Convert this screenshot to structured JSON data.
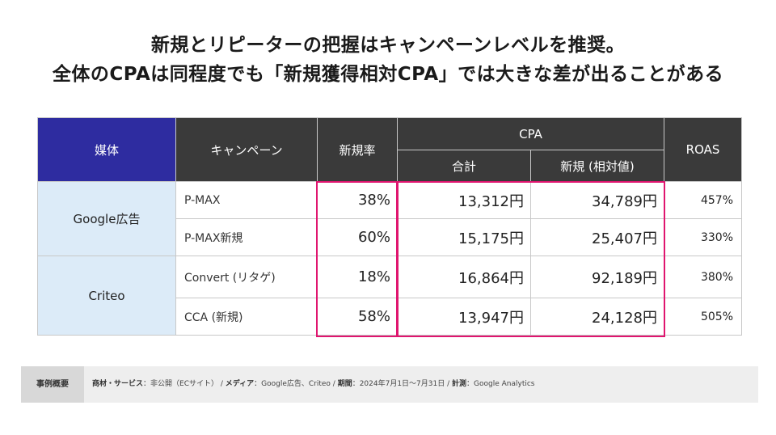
{
  "title": {
    "line1": "新規とリピーターの把握はキャンペーンレベルを推奨。",
    "line2": "全体のCPAは同程度でも「新規獲得相対CPA」では大きな差が出ることがある"
  },
  "table": {
    "headers": {
      "media": "媒体",
      "campaign": "キャンペーン",
      "new_rate": "新規率",
      "cpa": "CPA",
      "cpa_total": "合計",
      "cpa_new": "新規 (相対値)",
      "roas": "ROAS"
    },
    "groups": [
      {
        "media": "Google広告",
        "rows": [
          {
            "campaign": "P-MAX",
            "new_rate": "38%",
            "cpa_total": "13,312円",
            "cpa_new": "34,789円",
            "roas": "457%"
          },
          {
            "campaign": "P-MAX新規",
            "new_rate": "60%",
            "cpa_total": "15,175円",
            "cpa_new": "25,407円",
            "roas": "330%"
          }
        ]
      },
      {
        "media": "Criteo",
        "rows": [
          {
            "campaign": "Convert (リタゲ)",
            "new_rate": "18%",
            "cpa_total": "16,864円",
            "cpa_new": "92,189円",
            "roas": "380%"
          },
          {
            "campaign": "CCA (新規)",
            "new_rate": "58%",
            "cpa_total": "13,947円",
            "cpa_new": "24,128円",
            "roas": "505%"
          }
        ]
      }
    ]
  },
  "footer": {
    "label": "事例概要",
    "product_label": "商材・サービス",
    "product_value": "：非公開（ECサイト） / ",
    "media_label": "メディア",
    "media_value": "：Google広告、Criteo / ",
    "period_label": "期間",
    "period_value": "：2024年7月1日〜7月31日 / ",
    "measure_label": "計測",
    "measure_value": "：Google Analytics"
  },
  "colors": {
    "media_header_bg": "#2e2ca0",
    "header_bg": "#3a3a3a",
    "media_cell_bg": "#dcebf8",
    "highlight": "#e0156f"
  }
}
